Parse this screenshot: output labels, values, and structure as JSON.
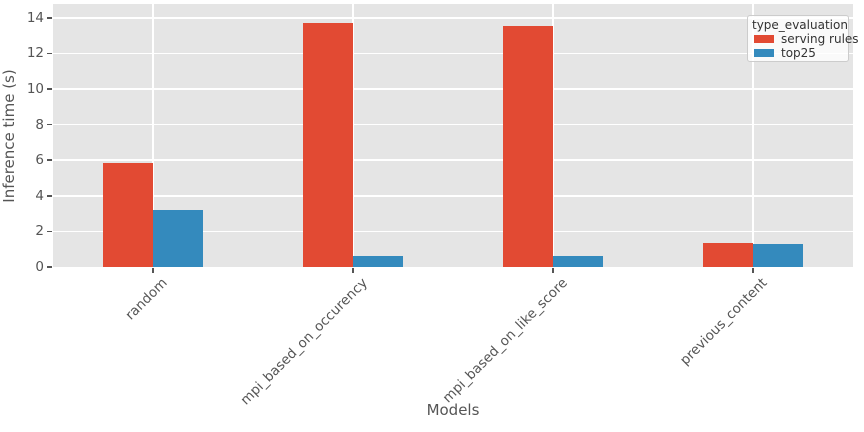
{
  "chart_data": {
    "type": "bar",
    "title": "",
    "xlabel": "Models",
    "ylabel": "Inference time (s)",
    "legend_title": "type_evaluation",
    "legend_position": "upper right",
    "categories": [
      "random",
      "mpi_based_on_occurency",
      "mpi_based_on_like_score",
      "previous_content"
    ],
    "series": [
      {
        "name": "serving rules",
        "color": "#E24A33",
        "values": [
          5.85,
          13.7,
          13.55,
          1.35
        ]
      },
      {
        "name": "top25",
        "color": "#348ABD",
        "values": [
          3.2,
          0.6,
          0.6,
          1.3
        ]
      }
    ],
    "yticks": [
      0,
      2,
      4,
      6,
      8,
      10,
      12,
      14
    ],
    "ylim": [
      0,
      14.8
    ],
    "grid": true,
    "style": {
      "plot_background": "#E5E5E5",
      "gridline_color": "#FFFFFF",
      "tick_color": "#555555",
      "axis_label_color": "#555555",
      "legend_text_color": "#333333"
    }
  }
}
